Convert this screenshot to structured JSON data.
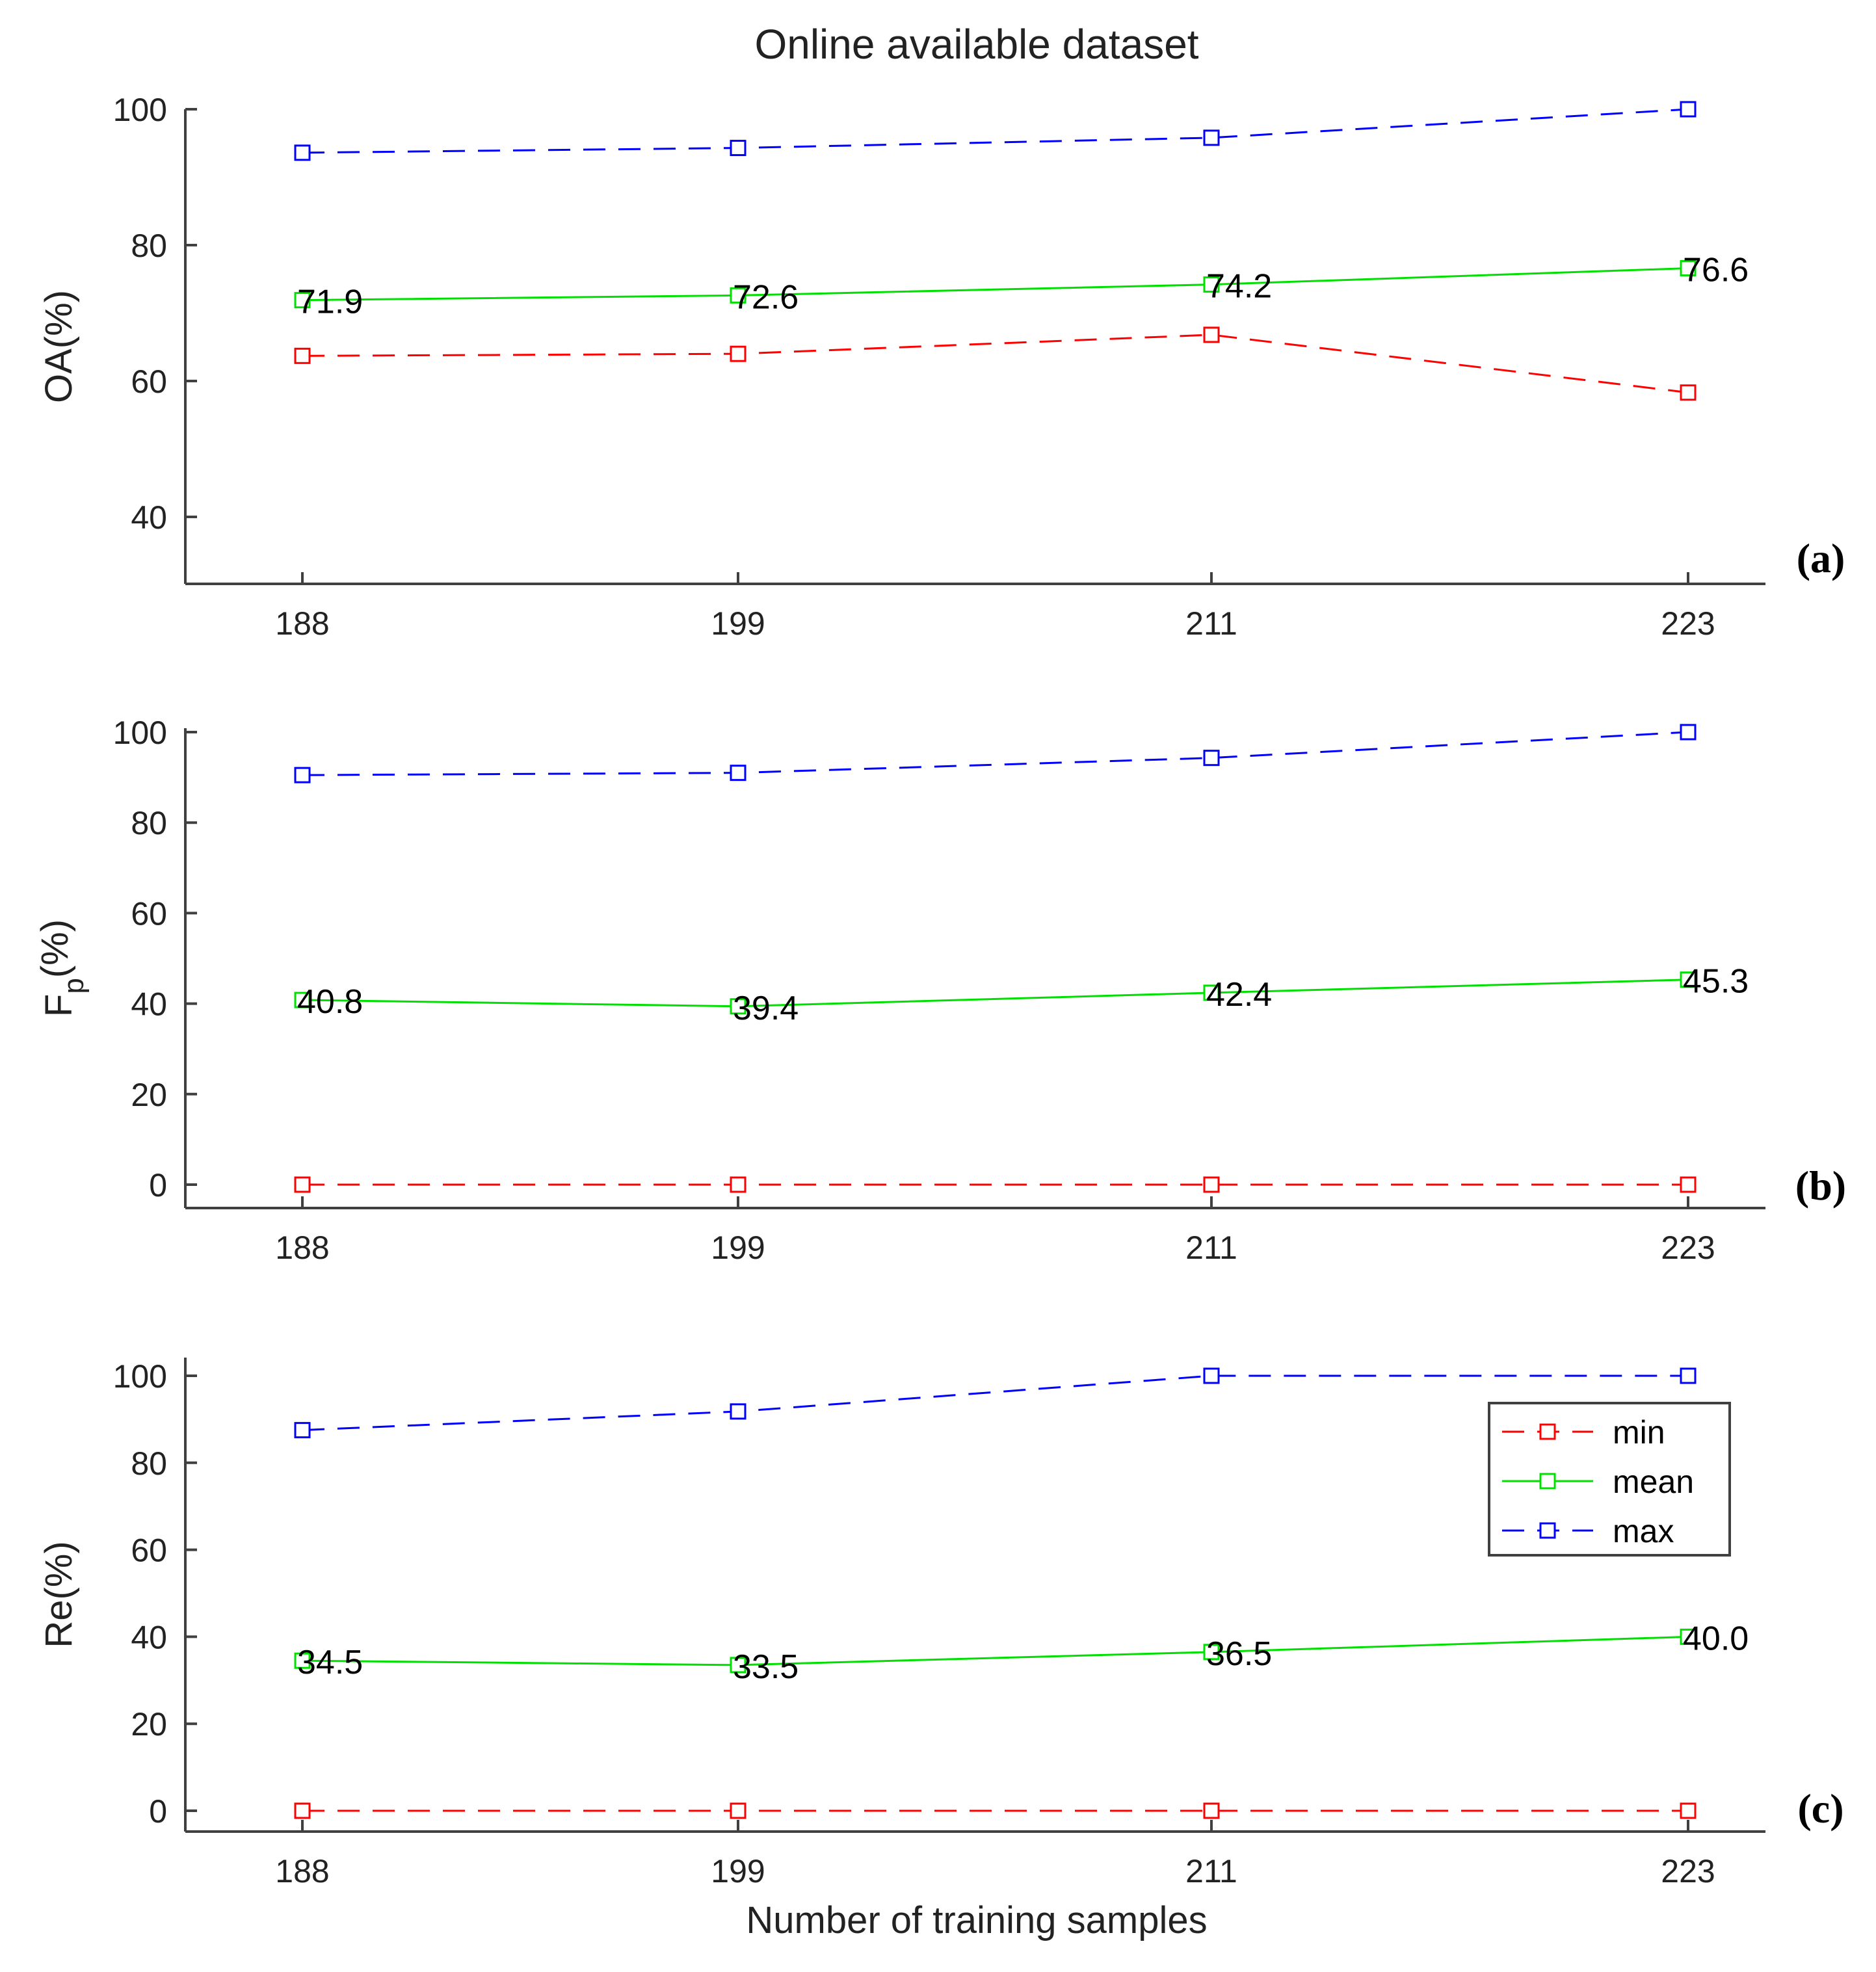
{
  "chart_data": {
    "title": "Online available dataset",
    "type": "line",
    "xlabel": "Number of training samples",
    "categories": [
      "188",
      "199",
      "211",
      "223"
    ],
    "panels": [
      {
        "id": "a",
        "sub_label": "(a)",
        "ylabel": "OA(%)",
        "ylim": [
          30,
          100
        ],
        "yticks": [
          40,
          60,
          80,
          100
        ],
        "series": [
          {
            "name": "min",
            "color": "#ff0000",
            "style": "dashed",
            "values": [
              63.7,
              64.0,
              66.8,
              58.3
            ]
          },
          {
            "name": "mean",
            "color": "#00e000",
            "style": "solid",
            "values": [
              71.9,
              72.6,
              74.2,
              76.6
            ],
            "labels": [
              "71.9",
              "72.6",
              "74.2",
              "76.6"
            ]
          },
          {
            "name": "max",
            "color": "#0000ff",
            "style": "dashed",
            "values": [
              93.6,
              94.3,
              95.8,
              100.0
            ]
          }
        ]
      },
      {
        "id": "b",
        "sub_label": "(b)",
        "ylabel": "F",
        "ylabel_sub": "p",
        "ylabel_suffix": "(%)",
        "ylim": [
          -5,
          100
        ],
        "yticks": [
          0,
          20,
          40,
          60,
          80,
          100
        ],
        "series": [
          {
            "name": "min",
            "color": "#ff0000",
            "style": "dashed",
            "values": [
              0,
              0,
              0,
              0
            ]
          },
          {
            "name": "mean",
            "color": "#00e000",
            "style": "solid",
            "values": [
              40.8,
              39.4,
              42.4,
              45.3
            ],
            "labels": [
              "40.8",
              "39.4",
              "42.4",
              "45.3"
            ]
          },
          {
            "name": "max",
            "color": "#0000ff",
            "style": "dashed",
            "values": [
              90.5,
              91.0,
              94.3,
              100.0
            ]
          }
        ]
      },
      {
        "id": "c",
        "sub_label": "(c)",
        "ylabel": "Re(%)",
        "ylim": [
          -5,
          105
        ],
        "yticks": [
          0,
          20,
          40,
          60,
          80,
          100
        ],
        "series": [
          {
            "name": "min",
            "color": "#ff0000",
            "style": "dashed",
            "values": [
              0,
              0,
              0,
              0
            ]
          },
          {
            "name": "mean",
            "color": "#00e000",
            "style": "solid",
            "values": [
              34.5,
              33.5,
              36.5,
              40.0
            ],
            "labels": [
              "34.5",
              "33.5",
              "36.5",
              "40.0"
            ]
          },
          {
            "name": "max",
            "color": "#0000ff",
            "style": "dashed",
            "values": [
              87.5,
              91.8,
              100.0,
              100.0
            ]
          }
        ]
      }
    ],
    "legend": {
      "location": "right, inside panel (c)",
      "entries": [
        {
          "name": "min",
          "color": "#ff0000",
          "style": "dashed"
        },
        {
          "name": "mean",
          "color": "#00e000",
          "style": "solid"
        },
        {
          "name": "max",
          "color": "#0000ff",
          "style": "dashed"
        }
      ]
    }
  }
}
